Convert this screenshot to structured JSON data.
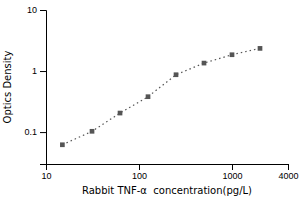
{
  "chart_data": {
    "type": "line",
    "xlabel": "Rabbit TNF-α  concentration(pg/L)",
    "ylabel": "Optics Density",
    "x": [
      15,
      31.25,
      62.5,
      125,
      250,
      500,
      1000,
      2000
    ],
    "values": [
      0.062,
      0.103,
      0.205,
      0.38,
      0.87,
      1.35,
      1.85,
      2.35
    ],
    "color": "#555555",
    "marker": "square",
    "line_style": "dotted",
    "log": true,
    "grid": false,
    "xlim": [
      10,
      4000
    ],
    "ylim": [
      0.03,
      10
    ],
    "xticks": [
      10,
      100,
      1000,
      4000
    ],
    "yticks": [
      0.1,
      1,
      10
    ]
  }
}
